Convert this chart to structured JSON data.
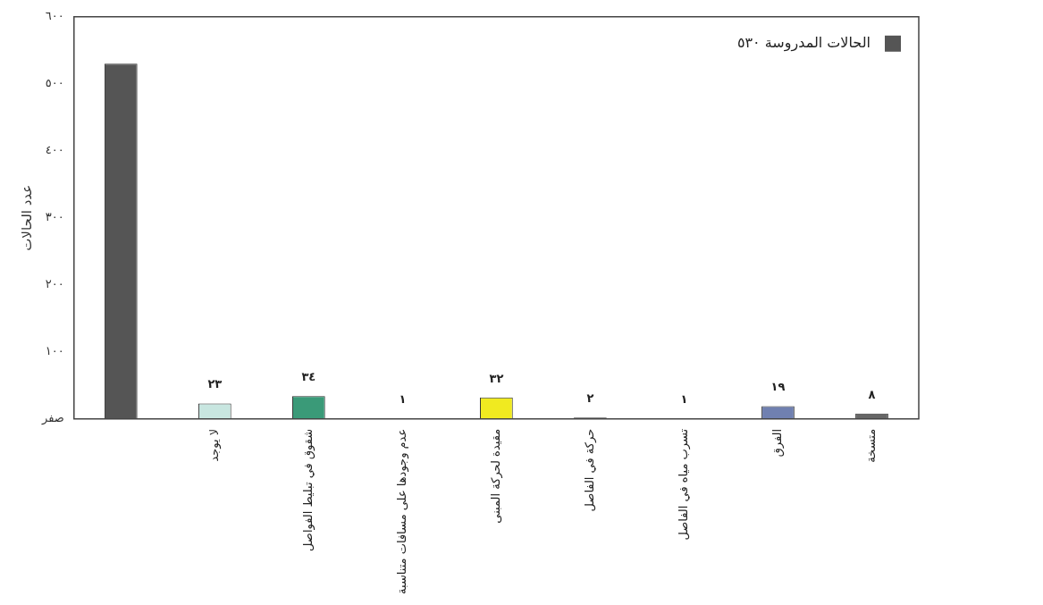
{
  "chart_data": {
    "type": "bar",
    "ylabel": "عدد الحالات",
    "categories": [
      null,
      "لا يوجد",
      "شقوق في تبليط الفواصل",
      "عدم وجودها على مسافات متناسبة",
      "مقيدة لحركة المبنى",
      "حركة في الفاصل",
      "تسرب مياه في الفاصل",
      "الفرق",
      "متسخة"
    ],
    "series": [
      {
        "name": "الحالات المدروسة ٥٣٠",
        "color": "#555555",
        "colors": [
          "#555555",
          "#c8e6e0",
          "#3a9a78",
          "#888888",
          "#f0ea20",
          "#888888",
          "#888888",
          "#7080b0",
          "#666666"
        ],
        "values": [
          530,
          23,
          34,
          1,
          32,
          2,
          1,
          19,
          8
        ],
        "value_labels": [
          null,
          "٢٣",
          "٣٤",
          "١",
          "٣٢",
          "٢",
          "١",
          "١٩",
          "٨"
        ]
      }
    ],
    "ylim": [
      0,
      600
    ],
    "yticks": [
      {
        "value": 0,
        "label": "صفر"
      },
      {
        "value": 100,
        "label": "١٠٠"
      },
      {
        "value": 200,
        "label": "٢٠٠"
      },
      {
        "value": 300,
        "label": "٣٠٠"
      },
      {
        "value": 400,
        "label": "٤٠٠"
      },
      {
        "value": 500,
        "label": "٥٠٠"
      },
      {
        "value": 600,
        "label": "٦٠٠"
      }
    ],
    "grid": false,
    "legend": "top right"
  }
}
